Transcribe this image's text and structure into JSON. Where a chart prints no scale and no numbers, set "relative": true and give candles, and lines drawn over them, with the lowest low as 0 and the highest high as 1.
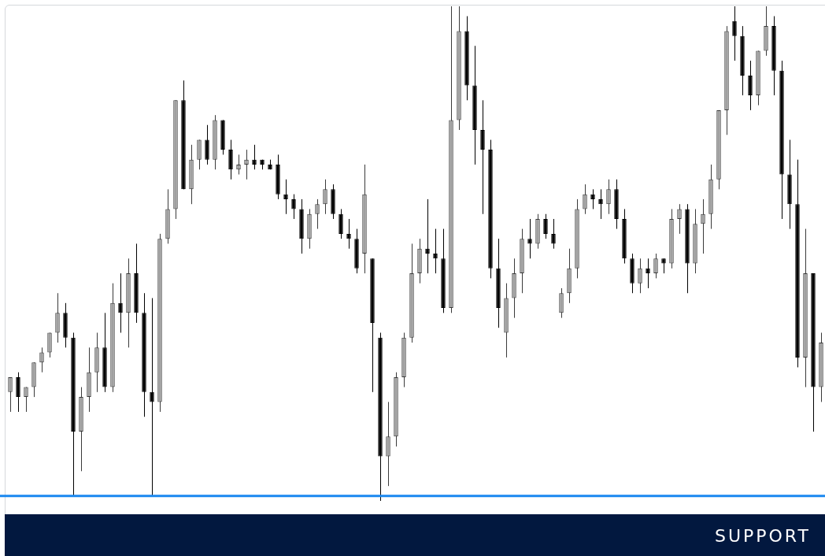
{
  "chart_data": {
    "type": "candlestick",
    "relative": true,
    "tick_labels": false,
    "categories": [
      null,
      null,
      null,
      null,
      null,
      null,
      null,
      null,
      null,
      null,
      null,
      null,
      null,
      null,
      null,
      null,
      null,
      null,
      null,
      null,
      null,
      null,
      null,
      null,
      null,
      null,
      null,
      null,
      null,
      null,
      null,
      null,
      null,
      null,
      null,
      null,
      null,
      null,
      null,
      null,
      null,
      null,
      null,
      null,
      null,
      null,
      null,
      null,
      null,
      null,
      null,
      null,
      null,
      null,
      null,
      null,
      null,
      null,
      null,
      null,
      null,
      null,
      null,
      null,
      null,
      null,
      null,
      null,
      null,
      null,
      null,
      null,
      null,
      null,
      null,
      null,
      null,
      null,
      null,
      null,
      null,
      null,
      null,
      null,
      null,
      null,
      null,
      null,
      null,
      null,
      null,
      null,
      null,
      null,
      null,
      null,
      null,
      null,
      null,
      null,
      null,
      null,
      null,
      null
    ],
    "ohlc": [
      [
        0.22,
        0.25,
        0.18,
        0.25
      ],
      [
        0.25,
        0.26,
        0.18,
        0.21
      ],
      [
        0.21,
        0.23,
        0.18,
        0.23
      ],
      [
        0.23,
        0.28,
        0.21,
        0.28
      ],
      [
        0.28,
        0.31,
        0.26,
        0.3
      ],
      [
        0.3,
        0.34,
        0.29,
        0.34
      ],
      [
        0.34,
        0.42,
        0.32,
        0.38
      ],
      [
        0.38,
        0.4,
        0.31,
        0.33
      ],
      [
        0.33,
        0.34,
        0.01,
        0.14
      ],
      [
        0.14,
        0.23,
        0.06,
        0.21
      ],
      [
        0.21,
        0.31,
        0.18,
        0.26
      ],
      [
        0.26,
        0.34,
        0.22,
        0.31
      ],
      [
        0.31,
        0.38,
        0.22,
        0.23
      ],
      [
        0.23,
        0.44,
        0.22,
        0.4
      ],
      [
        0.4,
        0.46,
        0.34,
        0.38
      ],
      [
        0.38,
        0.49,
        0.31,
        0.46
      ],
      [
        0.46,
        0.52,
        0.36,
        0.38
      ],
      [
        0.38,
        0.42,
        0.17,
        0.22
      ],
      [
        0.22,
        0.41,
        0.01,
        0.2
      ],
      [
        0.2,
        0.54,
        0.18,
        0.53
      ],
      [
        0.53,
        0.63,
        0.52,
        0.59
      ],
      [
        0.59,
        0.81,
        0.57,
        0.81
      ],
      [
        0.81,
        0.85,
        0.63,
        0.63
      ],
      [
        0.63,
        0.72,
        0.6,
        0.69
      ],
      [
        0.69,
        0.73,
        0.67,
        0.73
      ],
      [
        0.73,
        0.76,
        0.68,
        0.69
      ],
      [
        0.69,
        0.78,
        0.67,
        0.77
      ],
      [
        0.77,
        0.77,
        0.7,
        0.71
      ],
      [
        0.71,
        0.73,
        0.65,
        0.67
      ],
      [
        0.67,
        0.7,
        0.66,
        0.68
      ],
      [
        0.68,
        0.71,
        0.65,
        0.69
      ],
      [
        0.69,
        0.72,
        0.67,
        0.68
      ],
      [
        0.69,
        0.69,
        0.67,
        0.68
      ],
      [
        0.68,
        0.69,
        0.67,
        0.67
      ],
      [
        0.68,
        0.7,
        0.61,
        0.62
      ],
      [
        0.62,
        0.65,
        0.58,
        0.61
      ],
      [
        0.61,
        0.62,
        0.57,
        0.59
      ],
      [
        0.59,
        0.61,
        0.5,
        0.53
      ],
      [
        0.53,
        0.59,
        0.51,
        0.58
      ],
      [
        0.58,
        0.61,
        0.55,
        0.6
      ],
      [
        0.6,
        0.65,
        0.58,
        0.63
      ],
      [
        0.63,
        0.64,
        0.57,
        0.58
      ],
      [
        0.58,
        0.59,
        0.53,
        0.54
      ],
      [
        0.54,
        0.57,
        0.51,
        0.53
      ],
      [
        0.53,
        0.55,
        0.46,
        0.47
      ],
      [
        0.5,
        0.68,
        0.46,
        0.62
      ],
      [
        0.49,
        0.49,
        0.22,
        0.36
      ],
      [
        0.33,
        0.34,
        0,
        0.09
      ],
      [
        0.09,
        0.2,
        0.03,
        0.13
      ],
      [
        0.13,
        0.26,
        0.11,
        0.25
      ],
      [
        0.25,
        0.34,
        0.23,
        0.33
      ],
      [
        0.33,
        0.52,
        0.32,
        0.46
      ],
      [
        0.46,
        0.53,
        0.44,
        0.51
      ],
      [
        0.51,
        0.61,
        0.46,
        0.5
      ],
      [
        0.5,
        0.55,
        0.46,
        0.49
      ],
      [
        0.49,
        0.55,
        0.38,
        0.39
      ],
      [
        0.39,
        1,
        0.38,
        0.77
      ],
      [
        0.77,
        1,
        0.75,
        0.95
      ],
      [
        0.95,
        0.98,
        0.81,
        0.84
      ],
      [
        0.84,
        0.92,
        0.68,
        0.75
      ],
      [
        0.75,
        0.81,
        0.58,
        0.71
      ],
      [
        0.71,
        0.73,
        0.45,
        0.47
      ],
      [
        0.47,
        0.53,
        0.35,
        0.39
      ],
      [
        0.34,
        0.44,
        0.29,
        0.41
      ],
      [
        0.41,
        0.49,
        0.37,
        0.46
      ],
      [
        0.46,
        0.55,
        0.42,
        0.53
      ],
      [
        0.53,
        0.57,
        0.49,
        0.52
      ],
      [
        0.52,
        0.58,
        0.51,
        0.57
      ],
      [
        0.57,
        0.58,
        0.53,
        0.54
      ],
      [
        0.54,
        0.57,
        0.51,
        0.52
      ],
      [
        0.38,
        0.43,
        0.37,
        0.42
      ],
      [
        0.42,
        0.51,
        0.4,
        0.47
      ],
      [
        0.47,
        0.61,
        0.45,
        0.59
      ],
      [
        0.59,
        0.64,
        0.58,
        0.62
      ],
      [
        0.62,
        0.63,
        0.59,
        0.61
      ],
      [
        0.61,
        0.63,
        0.57,
        0.6
      ],
      [
        0.6,
        0.65,
        0.58,
        0.63
      ],
      [
        0.63,
        0.65,
        0.55,
        0.57
      ],
      [
        0.57,
        0.59,
        0.48,
        0.49
      ],
      [
        0.49,
        0.5,
        0.42,
        0.44
      ],
      [
        0.44,
        0.49,
        0.42,
        0.47
      ],
      [
        0.47,
        0.49,
        0.43,
        0.46
      ],
      [
        0.46,
        0.5,
        0.45,
        0.49
      ],
      [
        0.49,
        0.49,
        0.46,
        0.48
      ],
      [
        0.48,
        0.59,
        0.47,
        0.57
      ],
      [
        0.57,
        0.6,
        0.54,
        0.59
      ],
      [
        0.59,
        0.6,
        0.42,
        0.48
      ],
      [
        0.48,
        0.59,
        0.46,
        0.56
      ],
      [
        0.56,
        0.61,
        0.5,
        0.58
      ],
      [
        0.58,
        0.68,
        0.55,
        0.65
      ],
      [
        0.65,
        0.79,
        0.63,
        0.79
      ],
      [
        0.79,
        0.96,
        0.74,
        0.95
      ],
      [
        0.97,
        1,
        0.89,
        0.94
      ],
      [
        0.94,
        0.96,
        0.82,
        0.86
      ],
      [
        0.86,
        0.89,
        0.79,
        0.82
      ],
      [
        0.82,
        0.91,
        0.8,
        0.91
      ],
      [
        0.91,
        1,
        0.9,
        0.96
      ],
      [
        0.96,
        0.98,
        0.82,
        0.87
      ],
      [
        0.87,
        0.89,
        0.57,
        0.66
      ],
      [
        0.66,
        0.73,
        0.55,
        0.6
      ],
      [
        0.6,
        0.69,
        0.27,
        0.29
      ],
      [
        0.29,
        0.55,
        0.23,
        0.46
      ],
      [
        0.46,
        0.46,
        0.14,
        0.23
      ],
      [
        0.23,
        0.34,
        0.2,
        0.32
      ]
    ],
    "ref_lines": [
      {
        "axis": "y",
        "value": 0.01,
        "label": "SUPPORT",
        "color": "#1a88f0"
      }
    ]
  }
}
